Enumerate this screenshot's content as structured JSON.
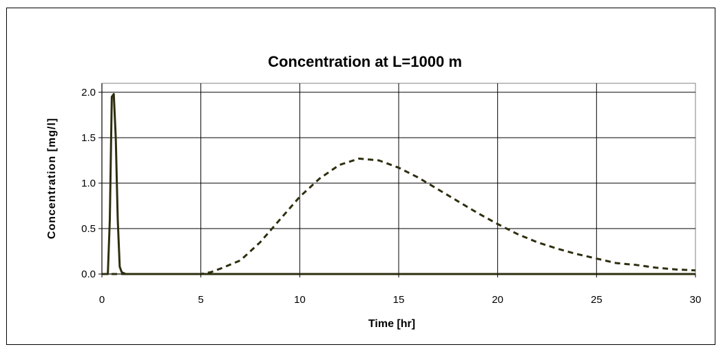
{
  "chart_data": {
    "type": "line",
    "title": "Concentration at L=1000 m",
    "xlabel": "Time [hr]",
    "ylabel": "Concentration [mg/l]",
    "xlim": [
      0,
      30
    ],
    "ylim": [
      0,
      2.0
    ],
    "x_ticks": [
      "0",
      "5",
      "10",
      "15",
      "20",
      "25",
      "30"
    ],
    "y_ticks": [
      "0.0",
      "0.5",
      "1.0",
      "1.5",
      "2.0"
    ],
    "grid": true,
    "legend": "none",
    "series": [
      {
        "style": "solid",
        "color": "#2e2e0f",
        "x": [
          0,
          0.3,
          0.4,
          0.5,
          0.6,
          0.7,
          0.8,
          0.9,
          1.0,
          1.2,
          1.5,
          2,
          5,
          10,
          15,
          20,
          25,
          30
        ],
        "y": [
          0,
          0,
          0.6,
          1.95,
          1.98,
          1.5,
          0.6,
          0.08,
          0.02,
          0,
          0,
          0,
          0,
          0,
          0,
          0,
          0,
          0
        ]
      },
      {
        "style": "dashed",
        "color": "#2e2e0f",
        "x": [
          0,
          5,
          5.5,
          6,
          7,
          8,
          9,
          10,
          11,
          12,
          13,
          14,
          15,
          16,
          17,
          18,
          19,
          20,
          21,
          22,
          23,
          24,
          25,
          26,
          27,
          28,
          29,
          30
        ],
        "y": [
          0,
          0,
          0.02,
          0.06,
          0.15,
          0.35,
          0.6,
          0.85,
          1.05,
          1.2,
          1.27,
          1.25,
          1.17,
          1.06,
          0.93,
          0.8,
          0.67,
          0.55,
          0.44,
          0.35,
          0.28,
          0.22,
          0.17,
          0.12,
          0.1,
          0.07,
          0.05,
          0.04
        ]
      }
    ]
  }
}
